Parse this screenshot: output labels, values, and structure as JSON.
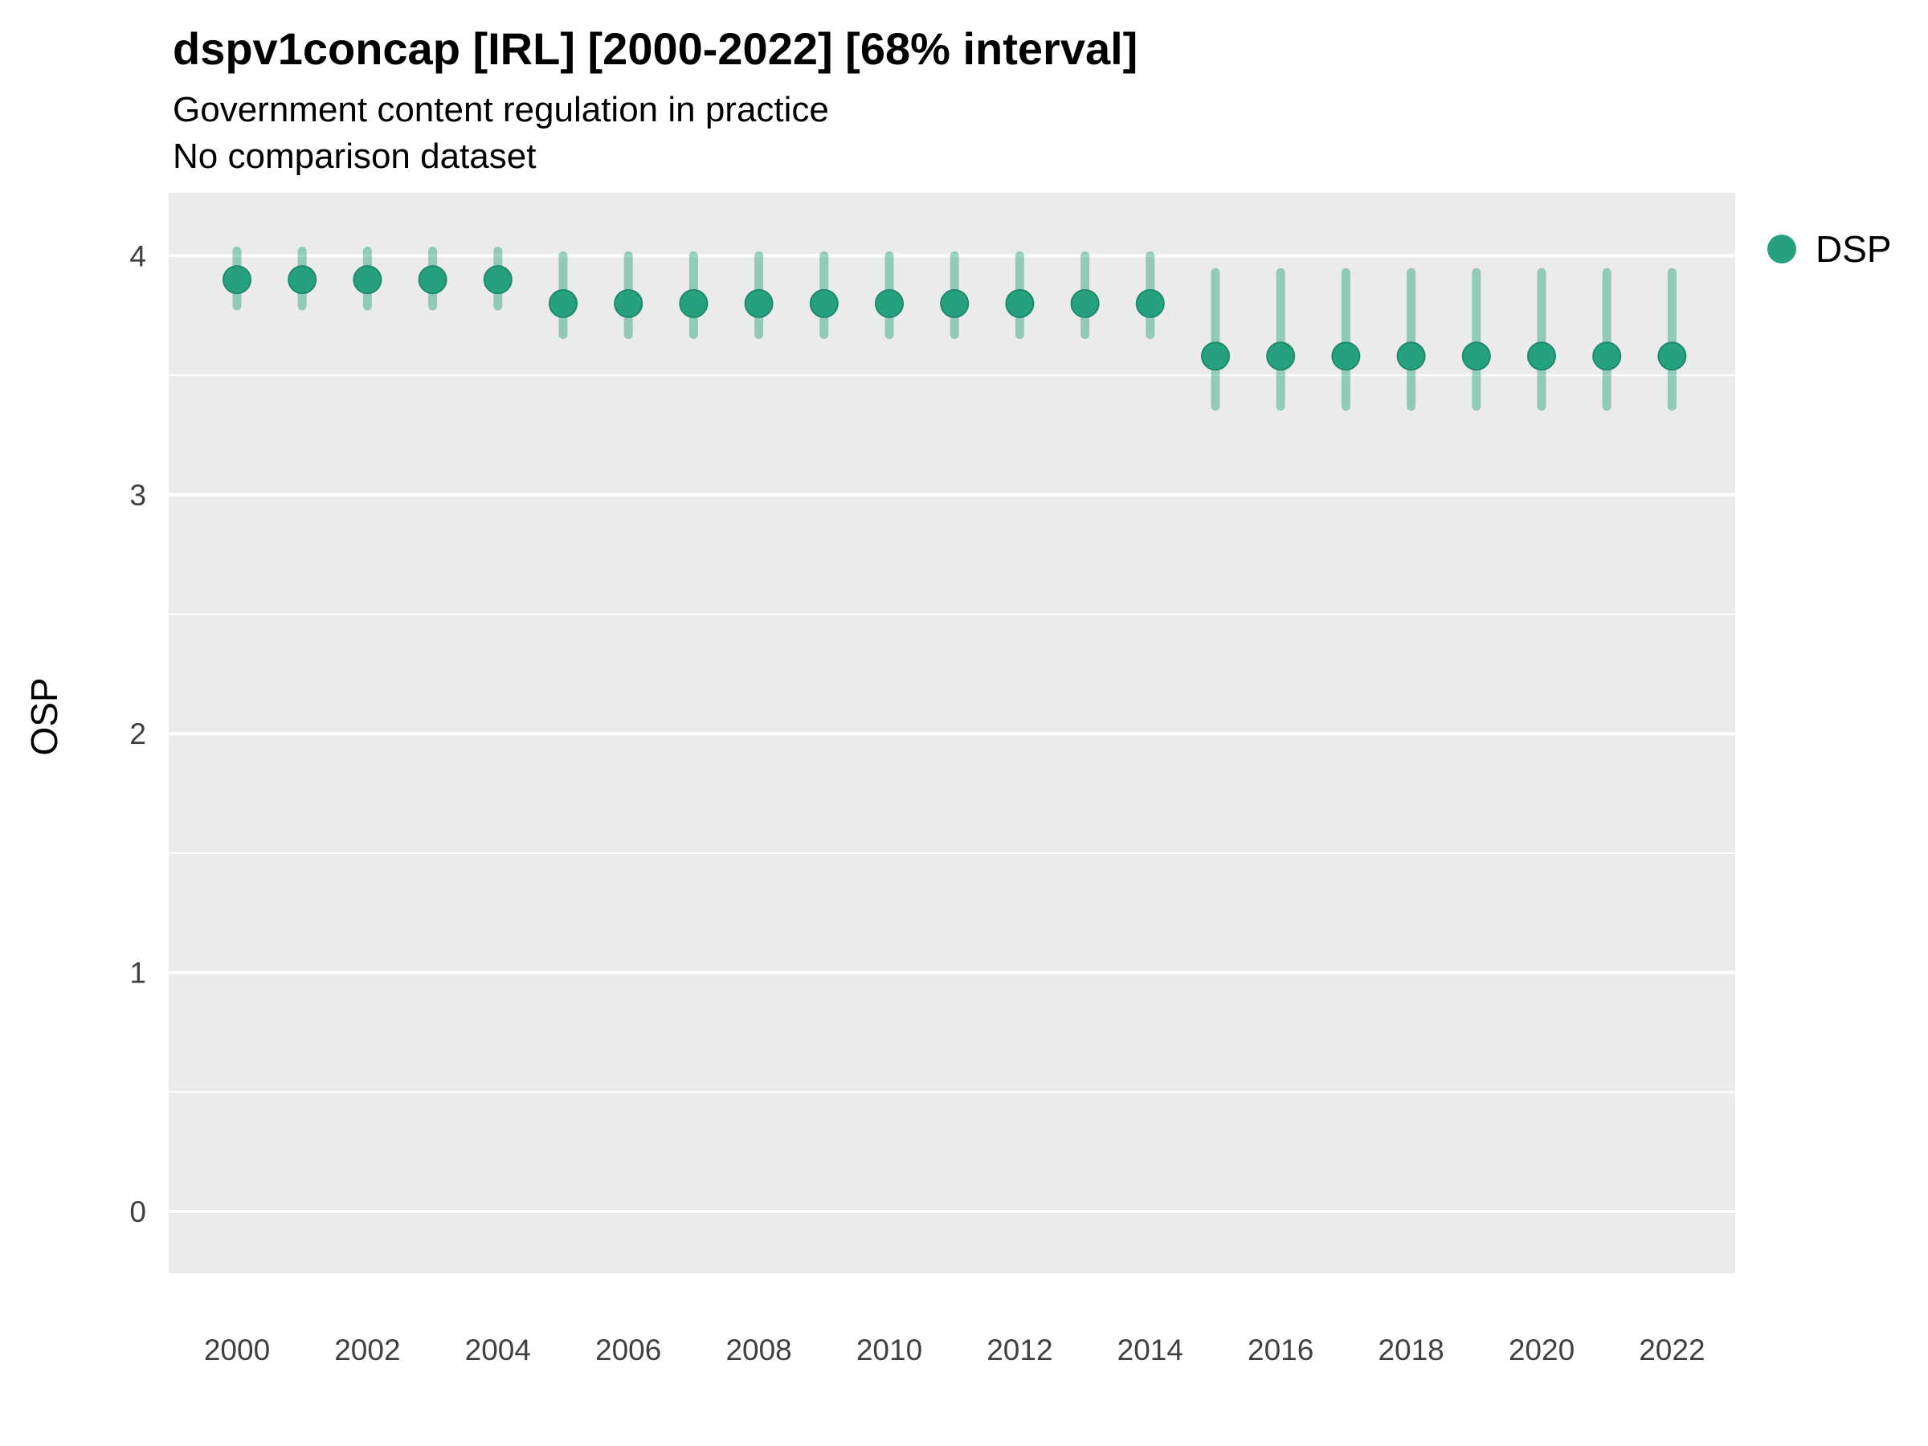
{
  "chart_data": {
    "type": "scatter",
    "title": "dspv1concap [IRL] [2000-2022] [68% interval]",
    "subtitle": "Government content regulation in practice",
    "subtitle2": "No comparison dataset",
    "xlabel": "",
    "ylabel": "OSP",
    "ylim": [
      -0.26,
      4.26
    ],
    "yticks": [
      0,
      1,
      2,
      3,
      4
    ],
    "xticks": [
      2000,
      2002,
      2004,
      2006,
      2008,
      2010,
      2012,
      2014,
      2016,
      2018,
      2020,
      2022
    ],
    "grid": "white major and minor gridlines on gray panel",
    "legend": {
      "position": "right",
      "items": [
        {
          "label": "DSP",
          "color": "#26a17e"
        }
      ]
    },
    "series": [
      {
        "name": "DSP",
        "x": [
          2000,
          2001,
          2002,
          2003,
          2004,
          2005,
          2006,
          2007,
          2008,
          2009,
          2010,
          2011,
          2012,
          2013,
          2014,
          2015,
          2016,
          2017,
          2018,
          2019,
          2020,
          2021,
          2022
        ],
        "est": [
          3.9,
          3.9,
          3.9,
          3.9,
          3.9,
          3.8,
          3.8,
          3.8,
          3.8,
          3.8,
          3.8,
          3.8,
          3.8,
          3.8,
          3.8,
          3.58,
          3.58,
          3.58,
          3.58,
          3.58,
          3.58,
          3.58,
          3.58
        ],
        "lo": [
          3.79,
          3.79,
          3.79,
          3.79,
          3.79,
          3.67,
          3.67,
          3.67,
          3.67,
          3.67,
          3.67,
          3.67,
          3.67,
          3.67,
          3.67,
          3.37,
          3.37,
          3.37,
          3.37,
          3.37,
          3.37,
          3.37,
          3.37
        ],
        "hi": [
          4.02,
          4.02,
          4.02,
          4.02,
          4.02,
          4.0,
          4.0,
          4.0,
          4.0,
          4.0,
          4.0,
          4.0,
          4.0,
          4.0,
          4.0,
          3.93,
          3.93,
          3.93,
          3.93,
          3.93,
          3.93,
          3.93,
          3.93
        ]
      }
    ],
    "colors": {
      "point": "#26a17e",
      "point_edge": "#1f8a6b",
      "interval_opacity": 0.45,
      "panel": "#ebebeb",
      "grid": "#ffffff",
      "tick_label": "#404040",
      "text": "#000000"
    }
  }
}
